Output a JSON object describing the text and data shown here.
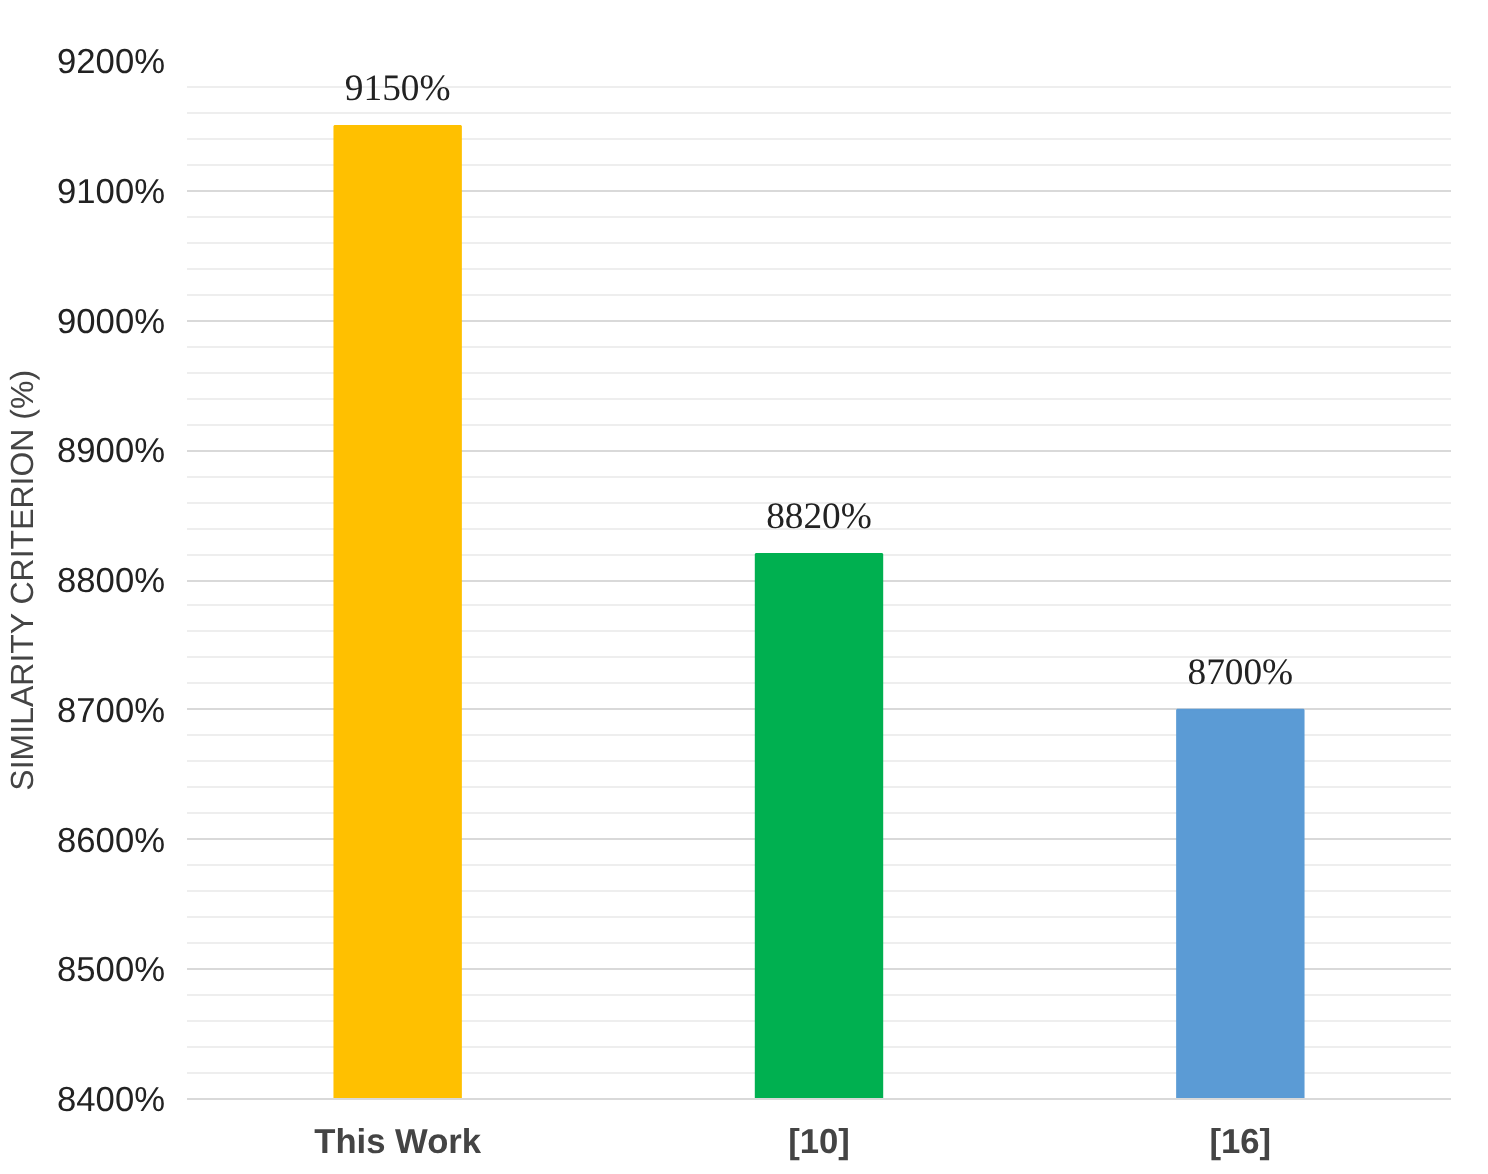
{
  "chart_data": {
    "type": "bar",
    "ylabel": "SIMILARITY CRITERION (%)",
    "categories": [
      "This Work",
      "[10]",
      "[16]"
    ],
    "values": [
      9150,
      8820,
      8700
    ],
    "colors": [
      "#ffc000",
      "#00b050",
      "#5b9bd5"
    ],
    "ylim": [
      8400,
      9200
    ],
    "yticks": [
      {
        "value": 8400,
        "label": "8400%"
      },
      {
        "value": 8500,
        "label": "8500%"
      },
      {
        "value": 8600,
        "label": "8600%"
      },
      {
        "value": 8700,
        "label": "8700%"
      },
      {
        "value": 8800,
        "label": "8800%"
      },
      {
        "value": 8900,
        "label": "8900%"
      },
      {
        "value": 9000,
        "label": "9000%"
      },
      {
        "value": 9100,
        "label": "9100%"
      },
      {
        "value": 9200,
        "label": "9200%"
      }
    ],
    "value_labels": [
      "9150%",
      "8820%",
      "8700%"
    ],
    "grid": "y"
  }
}
